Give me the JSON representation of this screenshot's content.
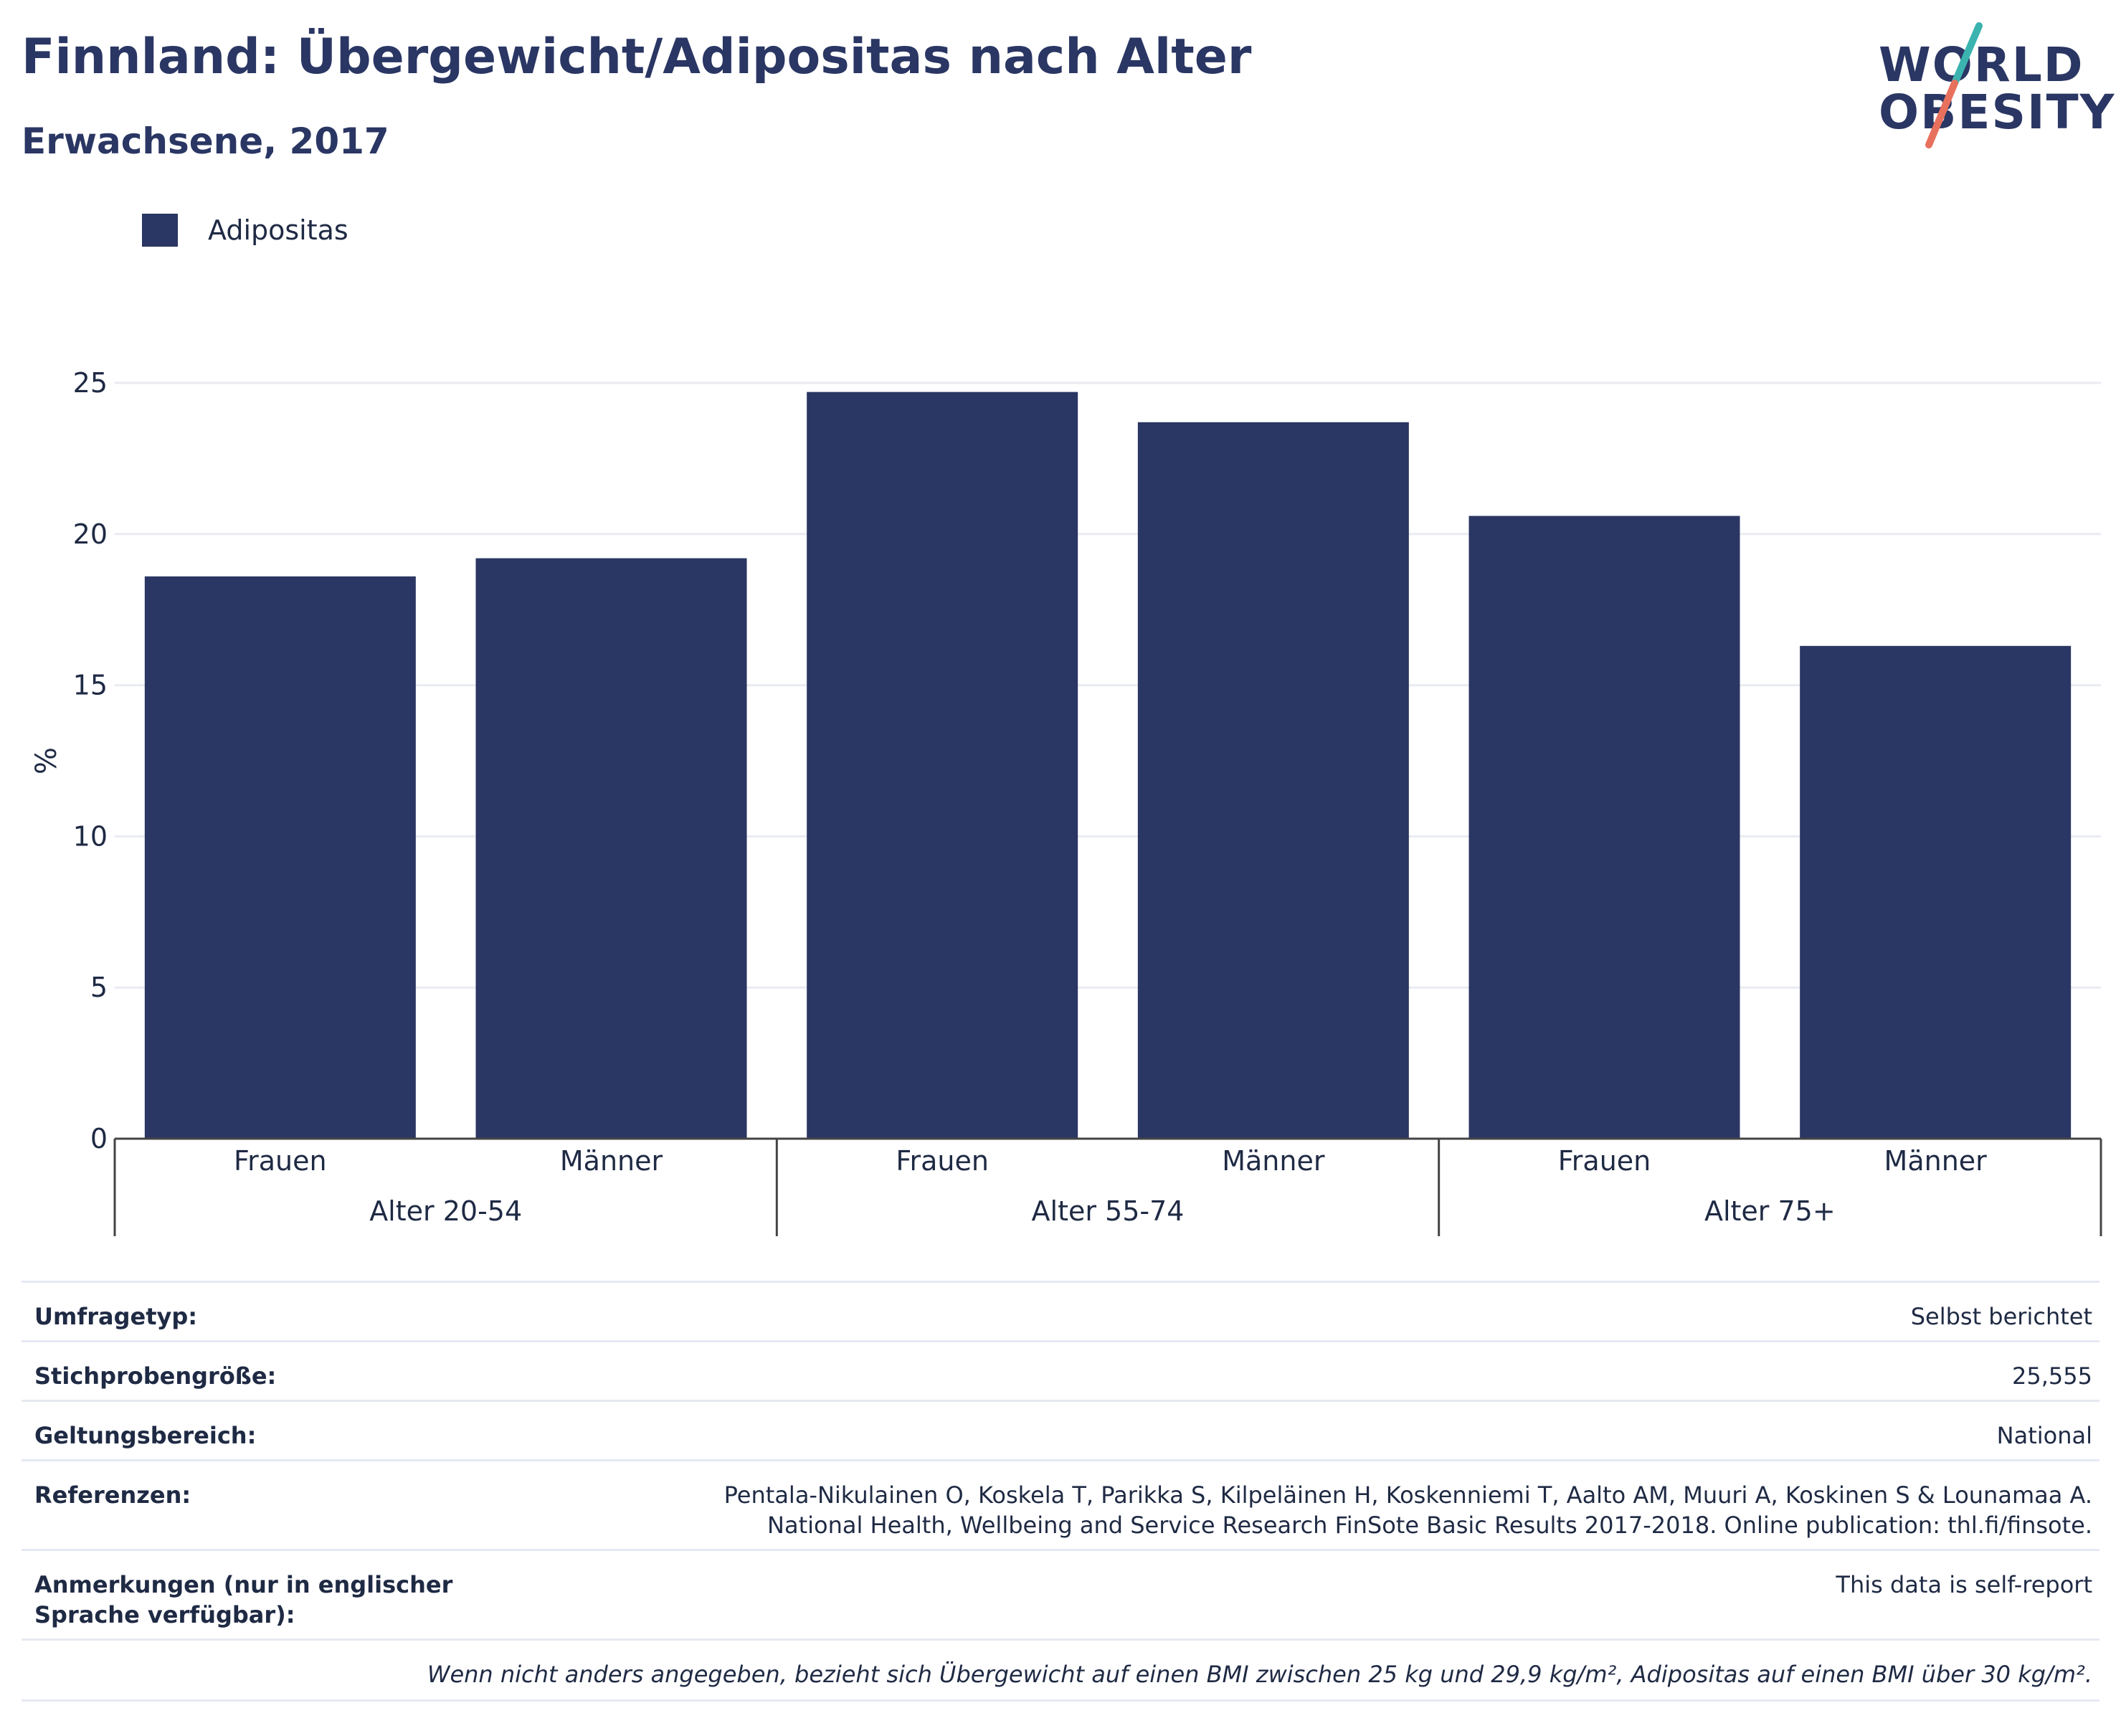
{
  "header": {
    "title": "Finnland: Übergewicht/Adipositas nach Alter",
    "subtitle": "Erwachsene, 2017"
  },
  "logo": {
    "line1": "WORLD",
    "line2": "OBESITY",
    "colors": {
      "text": "#2a3663",
      "slash_top": "#3bb4b0",
      "slash_bottom": "#e8715d"
    }
  },
  "legend": {
    "label": "Adipositas",
    "color": "#2a3663"
  },
  "chart_data": {
    "type": "bar",
    "ylabel": "%",
    "xlabel": "",
    "ylim": [
      0,
      25
    ],
    "yticks": [
      0,
      5,
      10,
      15,
      20,
      25
    ],
    "grid": true,
    "legend_position": "top-left",
    "groups": [
      "Alter 20-54",
      "Alter 55-74",
      "Alter 75+"
    ],
    "categories": [
      "Frauen",
      "Männer",
      "Frauen",
      "Männer",
      "Frauen",
      "Männer"
    ],
    "series": [
      {
        "name": "Adipositas",
        "color": "#2a3663",
        "values": [
          18.6,
          19.2,
          24.7,
          23.7,
          20.6,
          16.3
        ]
      }
    ]
  },
  "info": {
    "rows": [
      {
        "key": "Umfragetyp:",
        "value": "Selbst berichtet"
      },
      {
        "key": "Stichprobengröße:",
        "value": "25,555"
      },
      {
        "key": "Geltungsbereich:",
        "value": "National"
      },
      {
        "key": "Referenzen:",
        "value": "Pentala-Nikulainen O, Koskela T, Parikka S, Kilpeläinen H, Koskenniemi T, Aalto AM, Muuri A, Koskinen S & Lounamaa A. National Health, Wellbeing and Service Research FinSote Basic Results 2017-2018. Online publication: thl.fi/finsote."
      },
      {
        "key": "Anmerkungen (nur in englischer Sprache verfügbar):",
        "value": "This data is self-report"
      }
    ],
    "note": "Wenn nicht anders angegeben, bezieht sich Übergewicht auf einen BMI zwischen 25 kg und 29,9 kg/m², Adipositas auf einen BMI über 30 kg/m²."
  }
}
